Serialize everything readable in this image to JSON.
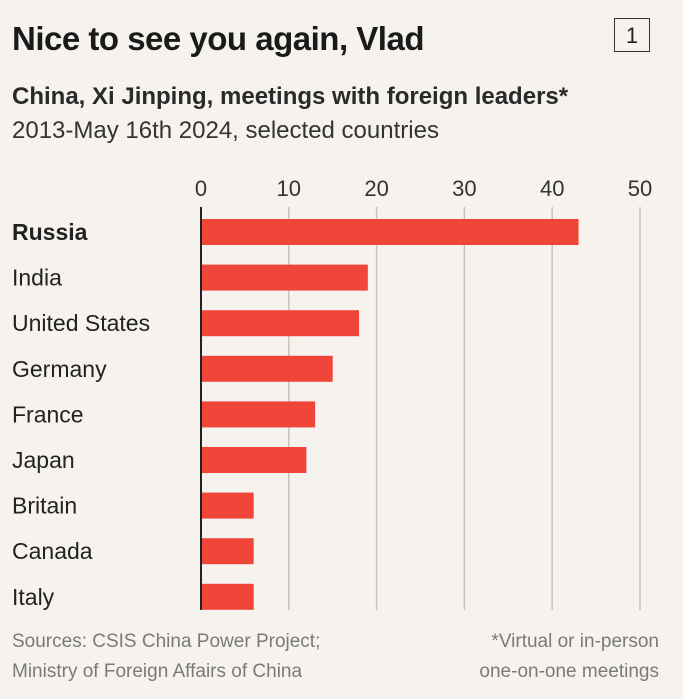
{
  "header": {
    "title": "Nice to see you again, Vlad",
    "badge": "1",
    "subtitle": "China, Xi Jinping, meetings with foreign leaders*",
    "subsubtitle": "2013-May 16th 2024, selected countries"
  },
  "footer": {
    "source_line1": "Sources: CSIS China Power Project;",
    "source_line2": "Ministry of Foreign Affairs of China",
    "note_line1": "*Virtual or in-person",
    "note_line2": "one-on-one meetings"
  },
  "colors": {
    "bar": "#f0463a",
    "grid": "#c9c3bc",
    "axis": "#222222",
    "background": "#f6f3ef"
  },
  "chart_data": {
    "type": "bar",
    "orientation": "horizontal",
    "title": "Nice to see you again, Vlad",
    "categories": [
      "Russia",
      "India",
      "United States",
      "Germany",
      "France",
      "Japan",
      "Britain",
      "Canada",
      "Italy"
    ],
    "values": [
      43,
      19,
      18,
      15,
      13,
      12,
      6,
      6,
      6
    ],
    "highlight": "Russia",
    "xlim": [
      0,
      50
    ],
    "xticks": [
      "0",
      "10",
      "20",
      "30",
      "40",
      "50"
    ],
    "xlabel": "",
    "ylabel": "",
    "grid": true
  }
}
